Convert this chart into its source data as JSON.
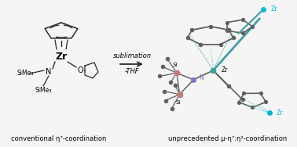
{
  "bg_color": "#f5f5f5",
  "caption_left": "conventional η⁷-coordination",
  "caption_right": "unprecedented μ-η⁷:η²-coordination",
  "arrow_label_top": "sublimation",
  "arrow_label_bot": "-THF",
  "colors": {
    "dark": "#2a2a2a",
    "teal_bond": "#5a9a9a",
    "zr_teal": "#40a0a8",
    "zr_cyan": "#00b8d4",
    "si_pink": "#c87878",
    "n_blue": "#7878c8",
    "gray_atom": "#606060",
    "bond_gray": "#707070"
  }
}
